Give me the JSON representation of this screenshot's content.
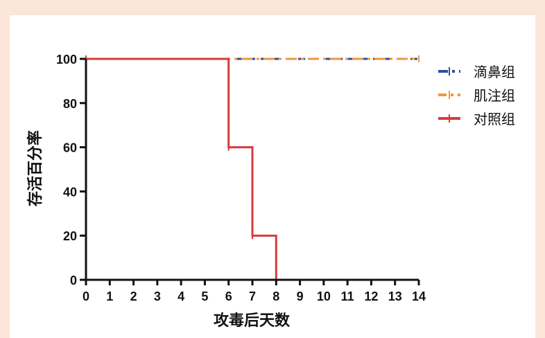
{
  "colors": {
    "page_background": "#fbe4d8",
    "plot_background": "#ffffff",
    "axis": "#111111"
  },
  "chart_data": {
    "type": "line",
    "step": true,
    "title": "",
    "xlabel": "攻毒后天数",
    "ylabel": "存活百分率",
    "xlim": [
      0,
      14
    ],
    "ylim": [
      0,
      100
    ],
    "xticks": [
      0,
      1,
      2,
      3,
      4,
      5,
      6,
      7,
      8,
      9,
      10,
      11,
      12,
      13,
      14
    ],
    "yticks": [
      0,
      20,
      40,
      60,
      80,
      100
    ],
    "grid": false,
    "legend_position": "right",
    "series": [
      {
        "name": "滴鼻组",
        "color": "#2d4f9e",
        "style": "dashed",
        "marker": "tick",
        "x": [
          0,
          14
        ],
        "y": [
          100,
          100
        ]
      },
      {
        "name": "肌注组",
        "color": "#f0963c",
        "style": "dash-dot",
        "marker": "tick",
        "x": [
          0,
          14
        ],
        "y": [
          100,
          100
        ]
      },
      {
        "name": "对照组",
        "color": "#d93a3a",
        "style": "solid",
        "marker": "tick",
        "x": [
          0,
          6,
          7,
          8
        ],
        "y": [
          100,
          60,
          20,
          0
        ]
      }
    ]
  }
}
